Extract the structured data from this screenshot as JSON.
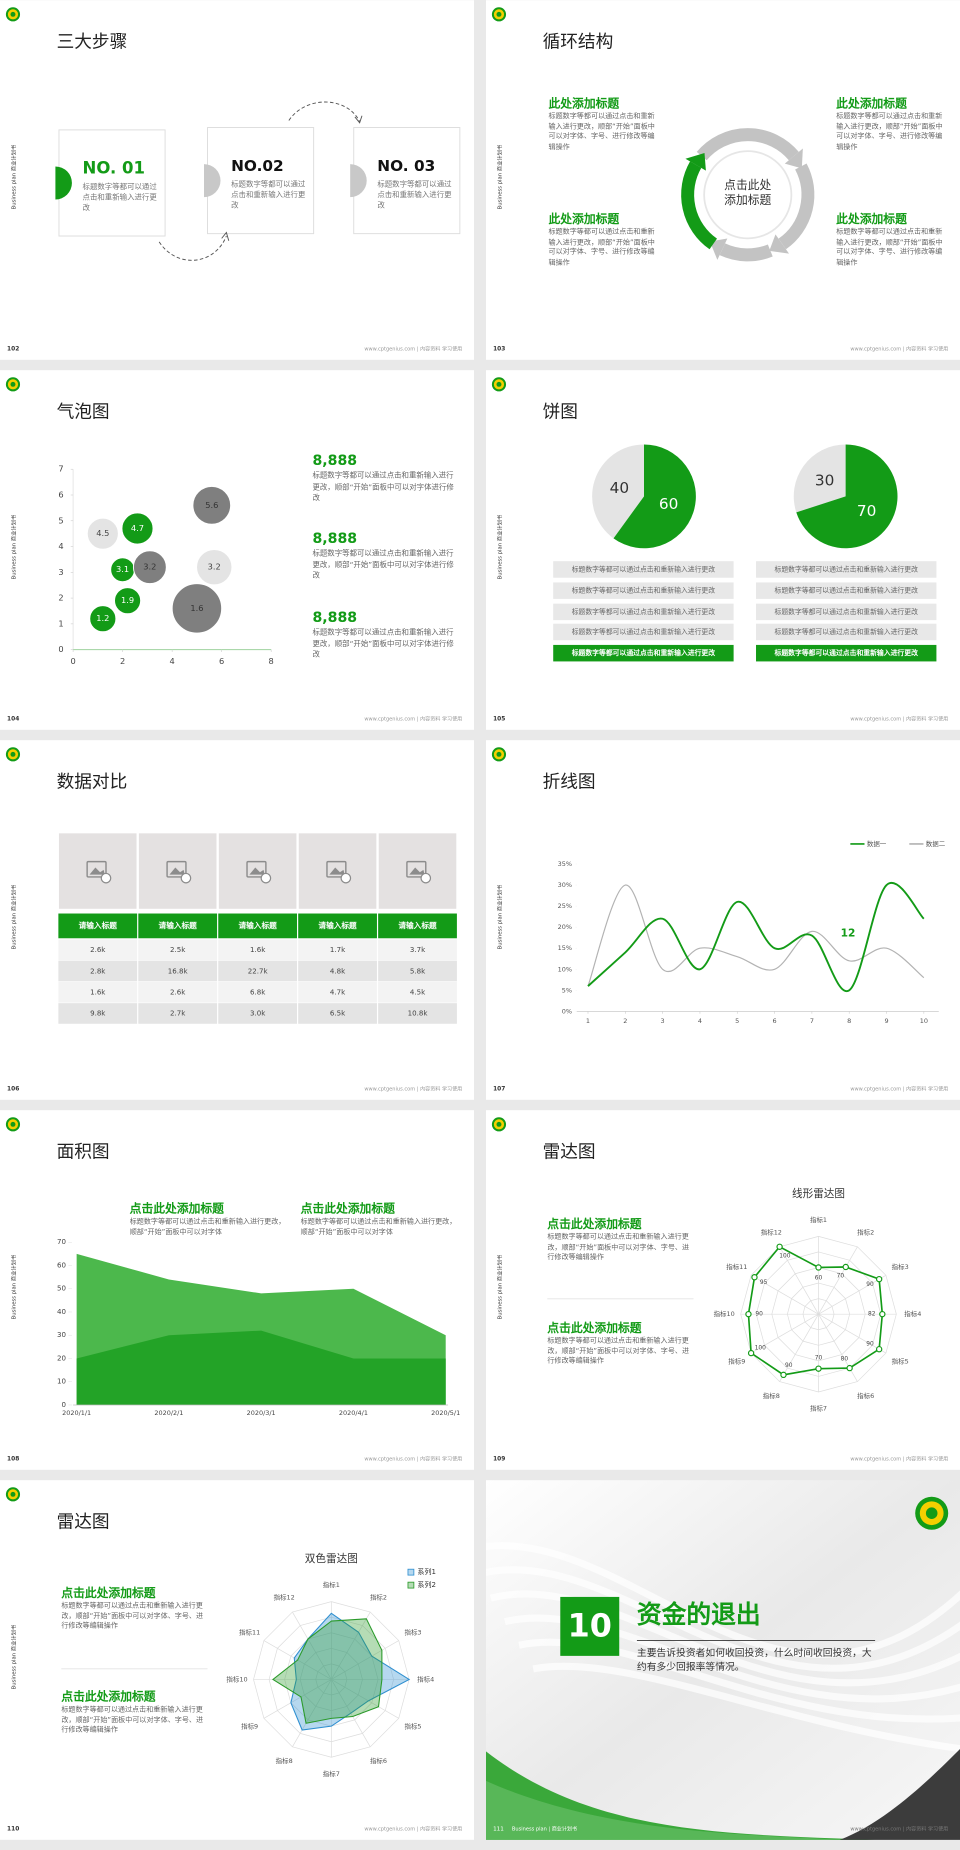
{
  "deck_label": "Business plan 商业计划书",
  "footer": "www.cptgenius.com | 内容资料 学习使用",
  "slides": [
    {
      "page": "102",
      "title": "三大步骤",
      "steps": [
        {
          "label": "NO. 01",
          "text": "标题数字等都可以通过点击和重新输入进行更改"
        },
        {
          "label": "NO.02",
          "text": "标题数字等都可以通过点击和重新输入进行更改"
        },
        {
          "label": "NO. 03",
          "text": "标题数字等都可以通过点击和重新输入进行更改"
        }
      ]
    },
    {
      "page": "103",
      "title": "循环结构",
      "center": "点击此处添加标题",
      "blocks": [
        {
          "heading": "此处添加标题",
          "text": "标题数字等都可以通过点击和重新输入进行更改，顺部“开始”面板中可以对字体、字号、进行修改等编辑操作"
        },
        {
          "heading": "此处添加标题",
          "text": "标题数字等都可以通过点击和重新输入进行更改，顺部“开始”面板中可以对字体、字号、进行修改等编辑操作"
        },
        {
          "heading": "此处添加标题",
          "text": "标题数字等都可以通过点击和重新输入进行更改，顺部“开始”面板中可以对字体、字号、进行修改等编辑操作"
        },
        {
          "heading": "此处添加标题",
          "text": "标题数字等都可以通过点击和重新输入进行更改，顺部“开始”面板中可以对字体、字号、进行修改等编辑操作"
        }
      ]
    },
    {
      "page": "104",
      "title": "气泡图",
      "chart": {
        "type": "bubble",
        "xlim": [
          0,
          8
        ],
        "xticks": [
          0,
          2,
          4,
          6,
          8
        ],
        "ylim": [
          0,
          7
        ],
        "yticks": [
          0,
          1,
          2,
          3,
          4,
          5,
          6,
          7
        ],
        "series": [
          {
            "color": "#139b17",
            "x": [
              1.2,
              2.2,
              2.0,
              2.6
            ],
            "values": [
              1.2,
              1.9,
              3.1,
              4.7
            ],
            "sizes": [
              12,
              12,
              10,
              17
            ]
          },
          {
            "color": "#e4e4e4",
            "x": [
              1.2,
              5.7
            ],
            "values": [
              4.5,
              3.2
            ],
            "sizes": [
              17,
              22
            ]
          },
          {
            "color": "#7f7f7f",
            "x": [
              3.1,
              5.6,
              5.0
            ],
            "values": [
              3.2,
              5.6,
              1.6
            ],
            "sizes": [
              19,
              25,
              43
            ]
          }
        ]
      },
      "blocks": [
        {
          "heading": "8,888",
          "text": "标题数字等都可以通过点击和重新输入进行更改，顺部“开始”面板中可以对字体进行修改"
        },
        {
          "heading": "8,888",
          "text": "标题数字等都可以通过点击和重新输入进行更改，顺部“开始”面板中可以对字体进行修改"
        },
        {
          "heading": "8,888",
          "text": "标题数字等都可以通过点击和重新输入进行更改，顺部“开始”面板中可以对字体进行修改"
        }
      ]
    },
    {
      "page": "105",
      "title": "饼图",
      "charts": [
        {
          "type": "pie",
          "values": [
            40,
            60
          ],
          "colors": [
            "#e4e4e4",
            "#139b17"
          ]
        },
        {
          "type": "pie",
          "values": [
            30,
            70
          ],
          "colors": [
            "#e4e4e4",
            "#139b17"
          ]
        }
      ],
      "lists": [
        [
          "标题数字等都可以通过点击和重新输入进行更改",
          "标题数字等都可以通过点击和重新输入进行更改",
          "标题数字等都可以通过点击和重新输入进行更改",
          "标题数字等都可以通过点击和重新输入进行更改",
          "标题数字等都可以通过点击和重新输入进行更改"
        ],
        [
          "标题数字等都可以通过点击和重新输入进行更改",
          "标题数字等都可以通过点击和重新输入进行更改",
          "标题数字等都可以通过点击和重新输入进行更改",
          "标题数字等都可以通过点击和重新输入进行更改",
          "标题数字等都可以通过点击和重新输入进行更改"
        ]
      ]
    },
    {
      "page": "106",
      "title": "数据对比",
      "table": {
        "header": [
          "请输入标题",
          "请输入标题",
          "请输入标题",
          "请输入标题",
          "请输入标题"
        ],
        "rows": [
          [
            "2.6k",
            "2.5k",
            "1.6k",
            "1.7k",
            "3.7k"
          ],
          [
            "2.8k",
            "16.8k",
            "22.7k",
            "4.8k",
            "5.8k"
          ],
          [
            "1.6k",
            "2.6k",
            "6.8k",
            "4.7k",
            "4.5k"
          ],
          [
            "9.8k",
            "2.7k",
            "3.0k",
            "6.5k",
            "10.8k"
          ]
        ]
      }
    },
    {
      "page": "107",
      "title": "折线图",
      "chart": {
        "type": "line",
        "x": [
          1,
          2,
          3,
          4,
          5,
          6,
          7,
          8,
          9,
          10
        ],
        "xlim": [
          0.7,
          10.4
        ],
        "xticks": [
          1,
          2,
          3,
          4,
          5,
          6,
          7,
          8,
          9,
          10
        ],
        "ylim": [
          0,
          35
        ],
        "yticks": [
          {
            "value": 0,
            "label": "0%"
          },
          {
            "value": 5,
            "label": "5%"
          },
          {
            "value": 10,
            "label": "10%"
          },
          {
            "value": 15,
            "label": "15%"
          },
          {
            "value": 20,
            "label": "20%"
          },
          {
            "value": 25,
            "label": "25%"
          },
          {
            "value": 30,
            "label": "30%"
          },
          {
            "value": 35,
            "label": "35%"
          }
        ],
        "annotation": "12",
        "series": [
          {
            "name": "数据一",
            "color": "#139b17",
            "values": [
              6,
              14,
              22,
              10,
              26,
              15,
              18,
              5,
              30,
              22
            ]
          },
          {
            "name": "数据二",
            "color": "#b3b3b3",
            "values": [
              6,
              30,
              10,
              15,
              13,
              10,
              19,
              12,
              15,
              8
            ]
          }
        ]
      }
    },
    {
      "page": "108",
      "title": "面积图",
      "chart": {
        "type": "area",
        "categories": [
          "2020/1/1",
          "2020/2/1",
          "2020/3/1",
          "2020/4/1",
          "2020/5/1"
        ],
        "ylim": [
          0,
          70
        ],
        "yticks": [
          0,
          10,
          20,
          30,
          40,
          50,
          60,
          70
        ],
        "series": [
          {
            "color": "#4cb84c",
            "values": [
              65,
              54,
              48,
              50,
              30
            ]
          },
          {
            "color": "#23a327",
            "values": [
              20,
              30,
              32,
              20,
              20
            ]
          }
        ]
      },
      "blocks": [
        {
          "heading": "点击此处添加标题",
          "text": "标题数字等都可以通过点击和重新输入进行更改，顺部“开始”面板中可以对字体"
        },
        {
          "heading": "点击此处添加标题",
          "text": "标题数字等都可以通过点击和重新输入进行更改，顺部“开始”面板中可以对字体"
        }
      ]
    },
    {
      "page": "109",
      "title": "雷达图",
      "chart": {
        "type": "radar",
        "title": "线形雷达图",
        "rlim": [
          0,
          100
        ],
        "categories": [
          "指标1",
          "指标2",
          "指标3",
          "指标4",
          "指标5",
          "指标6",
          "指标7",
          "指标8",
          "指标9",
          "指标10",
          "指标11",
          "指标12"
        ],
        "series": [
          {
            "color": "#139b17",
            "values": [
              60,
              70,
              90,
              82,
              90,
              80,
              70,
              90,
              100,
              90,
              95,
              100
            ]
          }
        ]
      },
      "blocks": [
        {
          "heading": "点击此处添加标题",
          "text": "标题数字等都可以通过点击和重新输入进行更改，顺部“开始”面板中可以对字体、字号、进行修改等编辑操作"
        },
        {
          "heading": "点击此处添加标题",
          "text": "标题数字等都可以通过点击和重新输入进行更改，顺部“开始”面板中可以对字体、字号、进行修改等编辑操作"
        }
      ]
    },
    {
      "page": "110",
      "title": "雷达图",
      "chart": {
        "type": "radar",
        "title": "双色雷达图",
        "rlim": [
          0,
          100
        ],
        "legend": "top-right",
        "categories": [
          "指标1",
          "指标2",
          "指标3",
          "指标4",
          "指标5",
          "指标6",
          "指标7",
          "指标8",
          "指标9",
          "指标10",
          "指标11",
          "指标12"
        ],
        "series": [
          {
            "name": "系列1",
            "color": "#2f8fd0",
            "values": [
              85,
              70,
              60,
              100,
              55,
              50,
              60,
              75,
              60,
              45,
              55,
              60
            ]
          },
          {
            "name": "系列2",
            "color": "#2a9a2a",
            "values": [
              75,
              90,
              75,
              65,
              70,
              55,
              50,
              65,
              45,
              75,
              50,
              60
            ]
          }
        ]
      },
      "blocks": [
        {
          "heading": "点击此处添加标题",
          "text": "标题数字等都可以通过点击和重新输入进行更改，顺部“开始”面板中可以对字体、字号、进行修改等编辑操作"
        },
        {
          "heading": "点击此处添加标题",
          "text": "标题数字等都可以通过点击和重新输入进行更改，顺部“开始”面板中可以对字体、字号、进行修改等编辑操作"
        }
      ]
    },
    {
      "page": "111",
      "number": "10",
      "title": "资金的退出",
      "text": "主要告诉投资者如何收回投资，什么时间收回投资，大约有多少回报率等情况。",
      "footer_label": "Business plan | 商业计划书"
    }
  ]
}
